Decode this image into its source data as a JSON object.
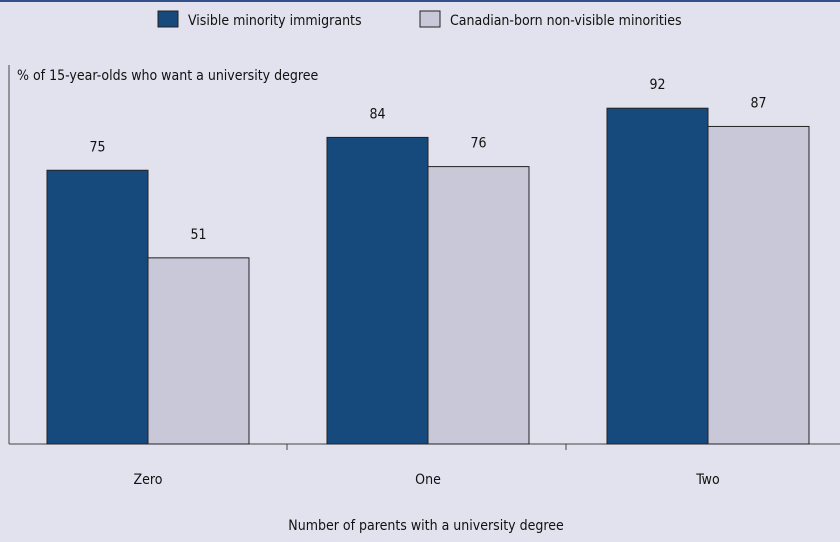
{
  "chart_data": {
    "type": "bar",
    "categories": [
      "Zero",
      "One",
      "Two"
    ],
    "series": [
      {
        "name": "Visible minority immigrants",
        "values": [
          75,
          84,
          92
        ],
        "color": "#174a7c"
      },
      {
        "name": "Canadian-born non-visible minorities",
        "values": [
          51,
          76,
          87
        ],
        "color": "#c8c8d8"
      }
    ],
    "ylabel": "% of 15-year-olds who want a university degree",
    "xlabel": "Number of parents with a university degree",
    "ylim": [
      0,
      100
    ],
    "data_labels": true,
    "legend_position": "top",
    "grid": false
  },
  "colors": {
    "background": "#e2e2ee",
    "frame": "#34508a",
    "bar_stroke": "#222222"
  }
}
